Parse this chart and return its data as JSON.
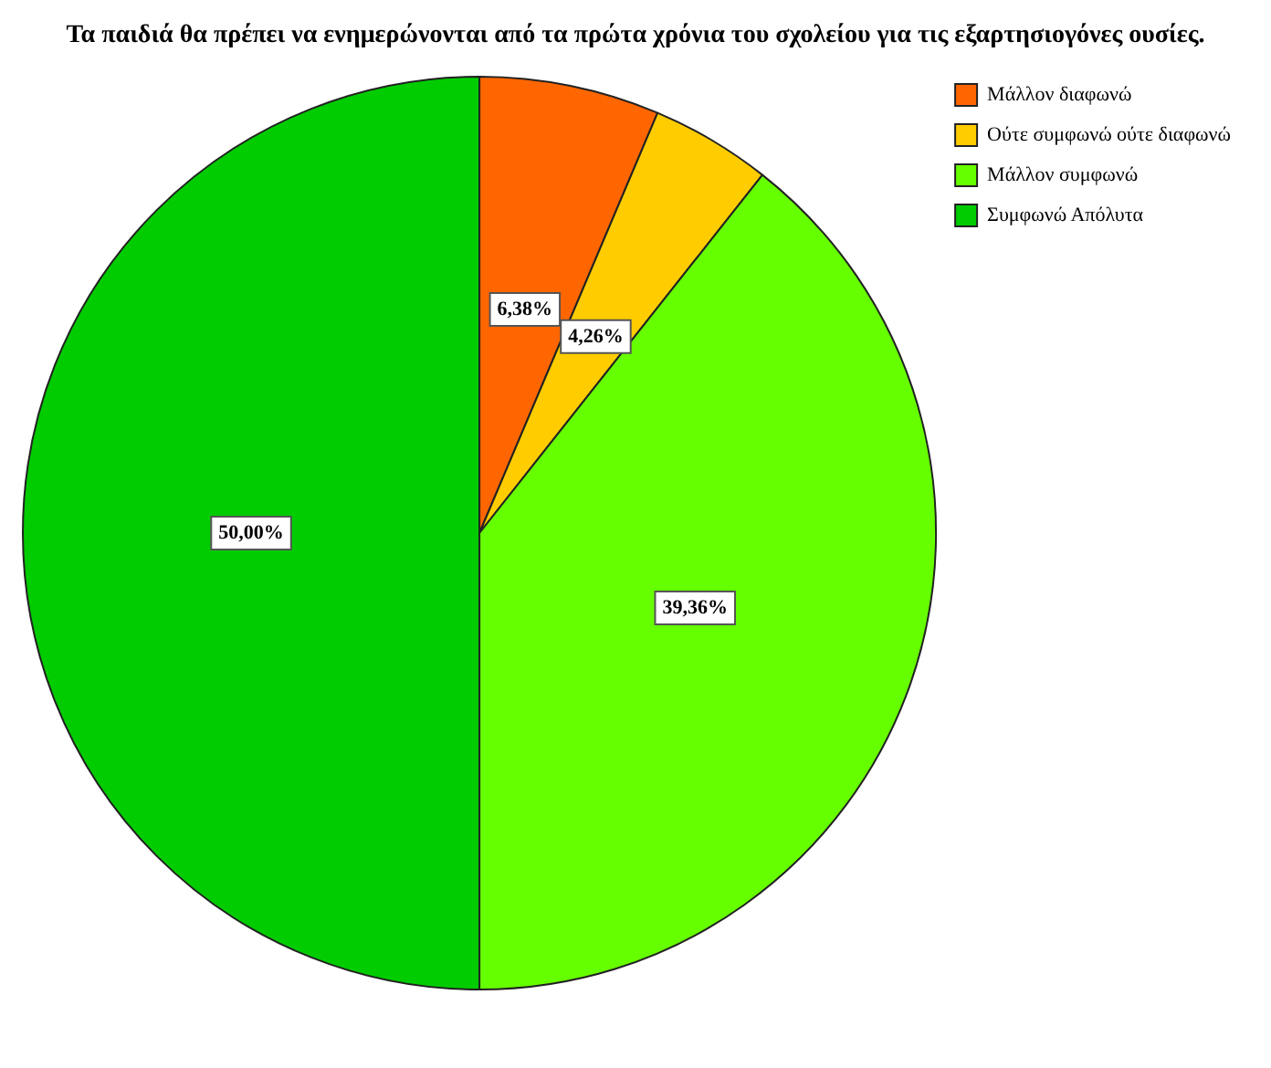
{
  "chart_data": {
    "type": "pie",
    "title": "Τα παιδιά θα πρέπει να ενημερώνονται από τα πρώτα χρόνια του σχολείου για τις εξαρτησιογόνες ουσίες.",
    "categories": [
      "Μάλλον διαφωνώ",
      "Ούτε συμφωνώ ούτε διαφωνώ",
      "Μάλλον συμφωνώ",
      "Συμφωνώ Απόλυτα"
    ],
    "values": [
      6.38,
      4.26,
      39.36,
      50.0
    ],
    "colors": [
      "#ff6600",
      "#ffcc00",
      "#66ff00",
      "#00cc00"
    ],
    "value_labels": [
      "6,38%",
      "4,26%",
      "39,36%",
      "50,00%"
    ],
    "legend": "top right"
  }
}
